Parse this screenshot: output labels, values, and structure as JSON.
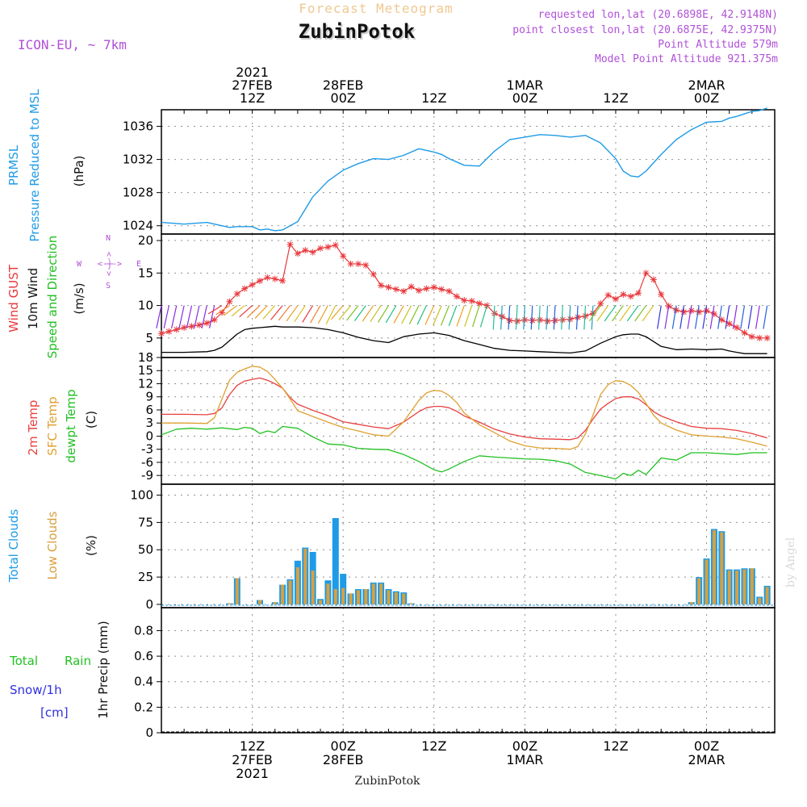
{
  "header": {
    "title": "Forecast Meteogram",
    "station": "ZubinPotok",
    "model": "ICON-EU, ~ 7km",
    "requested": "requested lon,lat (20.6898E, 42.9148N)",
    "closest": "point closest lon,lat (20.6875E, 42.9375N)",
    "point_alt": "Point Altitude 579m",
    "model_alt": "Model Point Altitude 921.375m",
    "footer": "ZubinPotok",
    "watermark": "by Angel"
  },
  "time_axis": {
    "start_hour": 0,
    "end_hour": 81,
    "top_labels": [
      {
        "t": 12,
        "lines": [
          "2021",
          "27FEB",
          "12Z"
        ]
      },
      {
        "t": 24,
        "lines": [
          "28FEB",
          "00Z"
        ]
      },
      {
        "t": 36,
        "lines": [
          "12Z"
        ]
      },
      {
        "t": 48,
        "lines": [
          "1MAR",
          "00Z"
        ]
      },
      {
        "t": 60,
        "lines": [
          "12Z"
        ]
      },
      {
        "t": 72,
        "lines": [
          "2MAR",
          "00Z"
        ]
      }
    ],
    "bottom_labels": [
      {
        "t": 12,
        "lines": [
          "12Z",
          "27FEB",
          "2021"
        ]
      },
      {
        "t": 24,
        "lines": [
          "00Z",
          "28FEB"
        ]
      },
      {
        "t": 36,
        "lines": [
          "12Z"
        ]
      },
      {
        "t": 48,
        "lines": [
          "00Z",
          "1MAR"
        ]
      },
      {
        "t": 60,
        "lines": [
          "12Z"
        ]
      },
      {
        "t": 72,
        "lines": [
          "00Z",
          "2MAR"
        ]
      }
    ]
  },
  "colors": {
    "pressure": "#1e9be6",
    "gust": "#e8383c",
    "wind": "#000000",
    "temp2m": "#e84040",
    "sfc": "#e0a030",
    "dewpt": "#22c022",
    "total_cloud": "#1e9be6",
    "low_cloud": "#d8a040",
    "rain": "#22c022",
    "snow": "#3030e0",
    "header_light": "#f0c890",
    "header_purple": "#b050d8"
  },
  "panel_labels": {
    "pressure": [
      "PRMSL",
      "Pressure Reduced to MSL",
      "(hPa)"
    ],
    "wind": [
      "Wind GUST",
      "10m Wind",
      "Speed and Direction",
      "(m/s)"
    ],
    "compass": {
      "n": "N",
      "s": "S",
      "w": "W",
      "e": "E",
      "arrows": "<-|->"
    },
    "temp": [
      "2m Temp",
      "SFC Temp",
      "dewpt Temp",
      "(C)"
    ],
    "cloud": [
      "Total Clouds",
      "Low Clouds",
      "(%)"
    ],
    "precip": [
      "Total",
      "Rain",
      "Snow/1h",
      "[cm]",
      "1hr Precip (mm)"
    ]
  },
  "chart_data": [
    {
      "type": "line",
      "ylabel": "(hPa)",
      "ylim": [
        1023,
        1038
      ],
      "yticks": [
        1024,
        1028,
        1032,
        1036
      ],
      "series": [
        {
          "name": "PRMSL",
          "x": [
            0,
            3,
            6,
            7,
            9,
            10,
            11,
            12,
            13,
            14,
            15,
            16,
            18,
            20,
            22,
            24,
            26,
            28,
            30,
            32,
            34,
            36,
            37,
            38,
            39,
            40,
            42,
            44,
            46,
            48,
            50,
            52,
            54,
            56,
            58,
            60,
            61,
            62,
            63,
            64,
            66,
            68,
            70,
            72,
            74,
            75,
            76,
            77,
            78,
            79,
            80
          ],
          "values": [
            1024.4,
            1024.2,
            1024.4,
            1024.2,
            1023.8,
            1023.9,
            1023.9,
            1023.9,
            1023.5,
            1023.6,
            1023.4,
            1023.5,
            1024.5,
            1027.5,
            1029.4,
            1030.7,
            1031.5,
            1032.1,
            1032.0,
            1032.5,
            1033.3,
            1032.9,
            1032.6,
            1032.1,
            1031.7,
            1031.3,
            1031.2,
            1033.0,
            1034.4,
            1034.7,
            1035.0,
            1034.9,
            1034.7,
            1034.9,
            1034.0,
            1032.1,
            1030.6,
            1030.0,
            1029.9,
            1030.6,
            1032.6,
            1034.4,
            1035.6,
            1036.5,
            1036.6,
            1037.0,
            1037.2,
            1037.5,
            1037.8,
            1037.9,
            1038.2
          ]
        }
      ]
    },
    {
      "type": "line",
      "ylabel": "(m/s)",
      "ylim": [
        2,
        21
      ],
      "yticks": [
        5,
        10,
        15,
        20
      ],
      "series": [
        {
          "name": "Wind GUST",
          "x": [
            0,
            1,
            2,
            3,
            4,
            5,
            6,
            7,
            8,
            9,
            10,
            11,
            12,
            13,
            14,
            15,
            16,
            17,
            18,
            19,
            20,
            21,
            22,
            23,
            24,
            25,
            26,
            27,
            28,
            29,
            30,
            31,
            32,
            33,
            34,
            35,
            36,
            37,
            38,
            39,
            40,
            41,
            42,
            43,
            44,
            45,
            46,
            47,
            48,
            49,
            50,
            51,
            52,
            53,
            54,
            55,
            56,
            57,
            58,
            59,
            60,
            61,
            62,
            63,
            64,
            65,
            66,
            67,
            68,
            69,
            70,
            71,
            72,
            73,
            74,
            75,
            76,
            77,
            78,
            79,
            80
          ],
          "values": [
            5.7,
            6.0,
            6.3,
            6.6,
            6.8,
            7.0,
            7.3,
            7.8,
            8.9,
            10.6,
            11.8,
            12.6,
            13.2,
            13.8,
            14.3,
            14.1,
            13.8,
            19.4,
            18.0,
            18.5,
            18.2,
            18.8,
            19.0,
            19.3,
            17.6,
            16.4,
            16.4,
            16.2,
            14.8,
            13.1,
            12.8,
            12.5,
            12.2,
            12.9,
            12.3,
            12.6,
            12.8,
            12.5,
            12.2,
            11.4,
            10.8,
            10.7,
            10.3,
            10.0,
            8.8,
            8.3,
            7.7,
            7.6,
            7.8,
            7.7,
            7.8,
            7.6,
            7.7,
            7.8,
            7.9,
            8.2,
            8.4,
            8.8,
            10.3,
            11.6,
            11.0,
            11.7,
            11.4,
            11.9,
            15.0,
            14.0,
            11.7,
            9.9,
            9.3,
            9.0,
            9.2,
            9.0,
            9.2,
            8.7,
            7.8,
            7.2,
            6.6,
            5.8,
            5.2,
            5.0,
            5.0
          ]
        },
        {
          "name": "10m Wind",
          "x": [
            0,
            3,
            6,
            7,
            8,
            9,
            10,
            11,
            12,
            13,
            14,
            15,
            16,
            18,
            20,
            22,
            24,
            26,
            28,
            30,
            32,
            34,
            36,
            38,
            40,
            42,
            44,
            46,
            48,
            50,
            52,
            54,
            56,
            58,
            60,
            61,
            62,
            63,
            64,
            66,
            68,
            70,
            72,
            74,
            75,
            76,
            77,
            78,
            79,
            80
          ],
          "values": [
            2.8,
            2.8,
            2.9,
            3.1,
            3.6,
            4.6,
            5.6,
            6.3,
            6.5,
            6.6,
            6.7,
            6.8,
            6.7,
            6.7,
            6.6,
            6.3,
            5.8,
            5.1,
            4.6,
            4.3,
            5.2,
            5.6,
            5.8,
            5.4,
            4.6,
            4.0,
            3.4,
            3.1,
            3.0,
            2.9,
            2.8,
            2.7,
            3.0,
            4.2,
            5.2,
            5.5,
            5.6,
            5.6,
            5.2,
            3.7,
            3.2,
            3.3,
            3.2,
            3.3,
            3.0,
            2.8,
            2.6,
            2.6,
            2.6,
            2.6
          ]
        }
      ]
    },
    {
      "type": "line",
      "ylabel": "(C)",
      "ylim": [
        -11,
        18
      ],
      "yticks": [
        -9,
        -6,
        -3,
        0,
        3,
        6,
        9,
        12,
        15,
        18
      ],
      "series": [
        {
          "name": "2m Temp",
          "x": [
            0,
            3,
            6,
            7,
            8,
            9,
            10,
            11,
            12,
            13,
            14,
            15,
            16,
            17,
            18,
            20,
            22,
            24,
            26,
            28,
            30,
            32,
            34,
            35,
            36,
            37,
            38,
            39,
            40,
            42,
            44,
            46,
            48,
            50,
            52,
            54,
            55,
            56,
            57,
            58,
            59,
            60,
            61,
            62,
            63,
            64,
            65,
            66,
            68,
            70,
            72,
            74,
            76,
            78,
            80
          ],
          "values": [
            5.0,
            5.0,
            4.9,
            5.2,
            6.5,
            9.5,
            11.6,
            12.6,
            13.0,
            13.3,
            12.8,
            12.0,
            11.0,
            8.8,
            7.3,
            5.9,
            4.7,
            3.3,
            2.7,
            2.1,
            1.7,
            3.2,
            5.6,
            6.5,
            6.8,
            6.8,
            6.5,
            5.7,
            4.6,
            3.2,
            1.6,
            0.5,
            -0.2,
            -0.6,
            -0.7,
            -0.8,
            -0.4,
            1.3,
            3.9,
            6.2,
            7.5,
            8.6,
            9.0,
            9.0,
            8.5,
            7.2,
            5.6,
            4.6,
            3.3,
            2.2,
            1.8,
            1.7,
            1.3,
            0.6,
            -0.4
          ]
        },
        {
          "name": "SFC Temp",
          "x": [
            0,
            3,
            6,
            7,
            8,
            9,
            10,
            11,
            12,
            13,
            14,
            15,
            16,
            17,
            18,
            20,
            22,
            24,
            26,
            28,
            30,
            32,
            34,
            35,
            36,
            37,
            38,
            39,
            40,
            42,
            44,
            46,
            48,
            50,
            52,
            54,
            55,
            56,
            57,
            58,
            59,
            60,
            61,
            62,
            63,
            64,
            65,
            66,
            68,
            70,
            72,
            74,
            76,
            78,
            80
          ],
          "values": [
            3.0,
            3.0,
            2.9,
            4.2,
            8.5,
            12.8,
            14.6,
            15.4,
            16.0,
            15.8,
            14.8,
            13.0,
            11.0,
            8.5,
            5.8,
            4.5,
            3.2,
            2.0,
            1.2,
            0.3,
            0.0,
            3.3,
            8.2,
            9.9,
            10.5,
            10.3,
            9.3,
            7.7,
            5.3,
            2.6,
            0.8,
            -1.1,
            -2.2,
            -2.7,
            -2.8,
            -3.0,
            -2.4,
            0.5,
            4.8,
            9.5,
            11.8,
            12.7,
            12.5,
            11.6,
            10.0,
            7.5,
            4.8,
            3.0,
            1.4,
            0.3,
            0.0,
            -0.2,
            -0.6,
            -1.4,
            -2.3
          ]
        },
        {
          "name": "dewpt Temp",
          "x": [
            0,
            2,
            4,
            6,
            8,
            10,
            11,
            12,
            13,
            14,
            15,
            16,
            18,
            20,
            22,
            24,
            26,
            28,
            30,
            32,
            34,
            36,
            37,
            38,
            40,
            42,
            44,
            46,
            48,
            50,
            52,
            54,
            56,
            58,
            60,
            61,
            62,
            63,
            64,
            66,
            68,
            70,
            72,
            74,
            76,
            78,
            80
          ],
          "values": [
            0.3,
            1.6,
            1.8,
            1.6,
            1.9,
            1.5,
            2.0,
            1.8,
            0.6,
            1.2,
            0.8,
            2.2,
            1.8,
            -0.2,
            -1.8,
            -2.0,
            -2.8,
            -3.0,
            -3.1,
            -4.2,
            -5.8,
            -7.7,
            -8.2,
            -7.5,
            -5.8,
            -4.5,
            -4.8,
            -5.0,
            -5.2,
            -5.3,
            -5.6,
            -6.4,
            -8.3,
            -9.0,
            -9.8,
            -8.5,
            -9.0,
            -7.8,
            -8.8,
            -5.0,
            -5.5,
            -3.8,
            -3.8,
            -4.0,
            -4.2,
            -3.8,
            -3.8
          ]
        }
      ]
    },
    {
      "type": "bar",
      "ylabel": "(%)",
      "ylim": [
        -3,
        110
      ],
      "yticks": [
        0,
        25,
        50,
        75,
        100
      ],
      "series": [
        {
          "name": "Total Clouds",
          "x": [
            9,
            10,
            13,
            15,
            16,
            17,
            18,
            19,
            20,
            21,
            22,
            23,
            24,
            25,
            26,
            27,
            28,
            29,
            30,
            31,
            32,
            33,
            70,
            71,
            72,
            73,
            74,
            75,
            76,
            77,
            78,
            79,
            80
          ],
          "values": [
            1,
            24,
            4,
            2,
            18,
            23,
            40,
            52,
            48,
            5,
            22,
            79,
            28,
            10,
            14,
            14,
            20,
            20,
            14,
            12,
            11,
            1,
            2,
            25,
            42,
            69,
            67,
            32,
            32,
            33,
            33,
            7,
            17
          ]
        },
        {
          "name": "Low Clouds",
          "x": [
            9,
            10,
            13,
            15,
            16,
            17,
            18,
            19,
            20,
            21,
            22,
            23,
            24,
            25,
            26,
            27,
            28,
            29,
            30,
            31,
            32,
            33,
            70,
            71,
            72,
            73,
            74,
            75,
            76,
            77,
            78,
            79,
            80
          ],
          "values": [
            1,
            24,
            4,
            2,
            18,
            22,
            34,
            51,
            31,
            4,
            19,
            14,
            15,
            10,
            13,
            14,
            19,
            19,
            13,
            11,
            10,
            1,
            2,
            24,
            41,
            68,
            66,
            31,
            31,
            32,
            33,
            6,
            16
          ]
        }
      ]
    },
    {
      "type": "bar",
      "ylabel": "1hr Precip (mm)",
      "ylim": [
        0,
        0.98
      ],
      "yticks": [
        0,
        0.2,
        0.4,
        0.6,
        0.8
      ],
      "series": []
    }
  ]
}
